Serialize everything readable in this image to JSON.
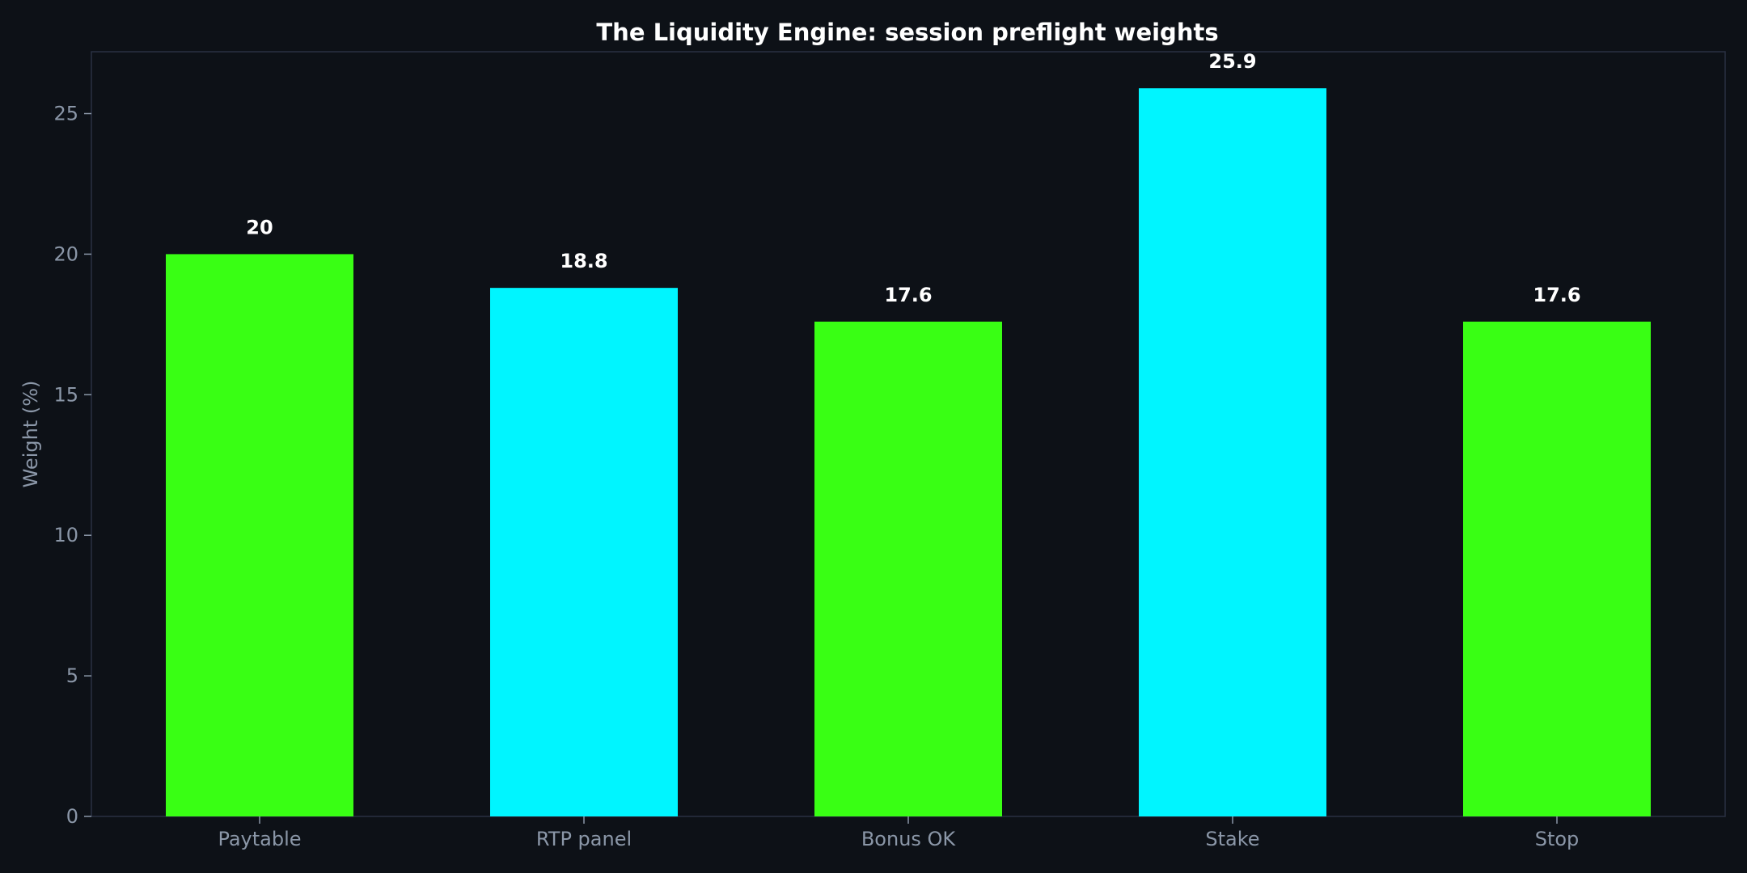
{
  "chart_data": {
    "type": "bar",
    "title": "The Liquidity Engine: session preflight weights",
    "xlabel": "",
    "ylabel": "Weight (%)",
    "categories": [
      "Paytable",
      "RTP panel",
      "Bonus OK",
      "Stake",
      "Stop"
    ],
    "values": [
      20,
      18.8,
      17.6,
      25.9,
      17.6
    ],
    "value_labels": [
      "20",
      "18.8",
      "17.6",
      "25.9",
      "17.6"
    ],
    "bar_colors": [
      "#39ff14",
      "#00f5ff",
      "#39ff14",
      "#00f5ff",
      "#39ff14"
    ],
    "ylim": [
      0,
      27.2
    ],
    "yticks": [
      0,
      5,
      10,
      15,
      20,
      25
    ],
    "grid": false,
    "legend": "none"
  },
  "colors": {
    "background": "#0d1117",
    "frame": "#2a3142",
    "tick_text": "#8b97a8",
    "label_text": "#ffffff"
  }
}
